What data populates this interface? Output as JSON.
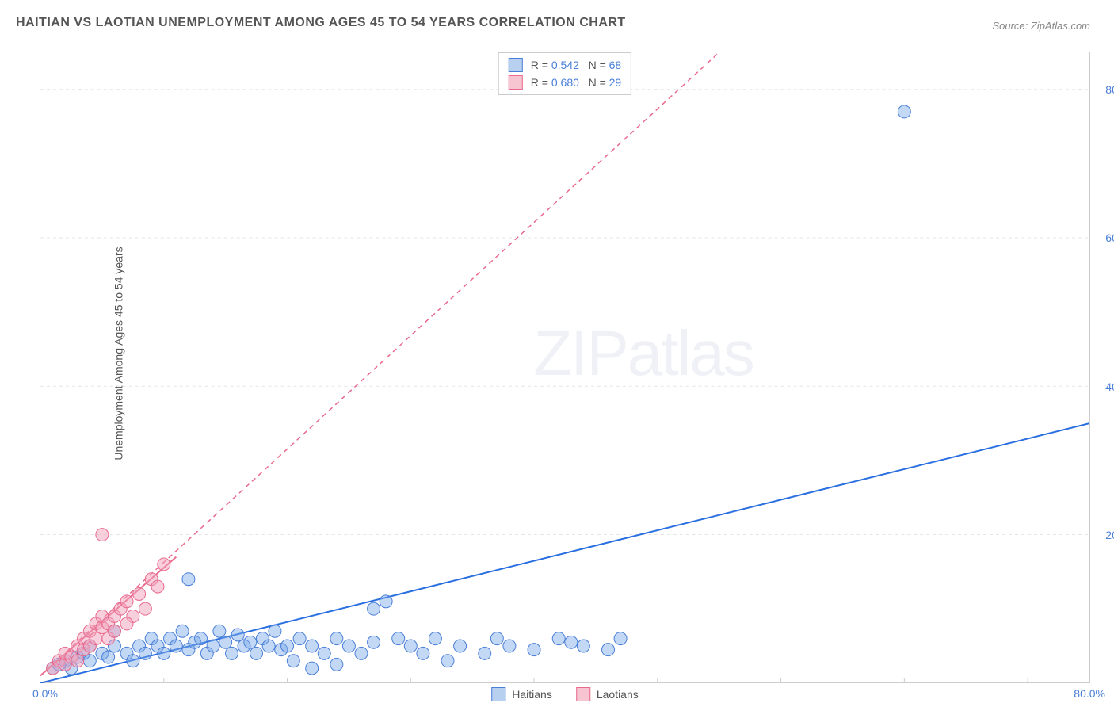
{
  "title": "HAITIAN VS LAOTIAN UNEMPLOYMENT AMONG AGES 45 TO 54 YEARS CORRELATION CHART",
  "source": "Source: ZipAtlas.com",
  "ylabel": "Unemployment Among Ages 45 to 54 years",
  "watermark": {
    "part1": "ZIP",
    "part2": "atlas"
  },
  "chart": {
    "type": "scatter",
    "xlim": [
      0,
      85
    ],
    "ylim": [
      0,
      85
    ],
    "x_origin_label": "0.0%",
    "x_max_label": "80.0%",
    "y_ticks": [
      20,
      40,
      60,
      80
    ],
    "y_tick_labels": [
      "20.0%",
      "40.0%",
      "60.0%",
      "80.0%"
    ],
    "grid_color": "#e5e5e5",
    "corr_legend": [
      {
        "swatch_fill": "#b8d0f0",
        "swatch_stroke": "#4a7fd8",
        "r": "0.542",
        "n": "68"
      },
      {
        "swatch_fill": "#f6c5d1",
        "swatch_stroke": "#e86a8d",
        "r": "0.680",
        "n": "29"
      }
    ],
    "series_legend": [
      {
        "label": "Haitians",
        "swatch_fill": "#b8d0f0",
        "swatch_stroke": "#4a7fd8"
      },
      {
        "label": "Laotians",
        "swatch_fill": "#f6c5d1",
        "swatch_stroke": "#e86a8d"
      }
    ],
    "series": [
      {
        "name": "Haitians",
        "marker_fill": "rgba(122,168,232,0.45)",
        "marker_stroke": "#4a7fd8",
        "marker_radius": 8,
        "trend": {
          "x1": 0,
          "y1": 0,
          "x2": 85,
          "y2": 35,
          "stroke": "#2a6fe0",
          "width": 2,
          "dash": ""
        },
        "points": [
          [
            1,
            2
          ],
          [
            1.5,
            2.5
          ],
          [
            2,
            3
          ],
          [
            2.5,
            2
          ],
          [
            3,
            3.5
          ],
          [
            3.5,
            4
          ],
          [
            4,
            3
          ],
          [
            4,
            5
          ],
          [
            5,
            4
          ],
          [
            5.5,
            3.5
          ],
          [
            6,
            5
          ],
          [
            6,
            7
          ],
          [
            7,
            4
          ],
          [
            7.5,
            3
          ],
          [
            8,
            5
          ],
          [
            8.5,
            4
          ],
          [
            9,
            6
          ],
          [
            9.5,
            5
          ],
          [
            10,
            4
          ],
          [
            10.5,
            6
          ],
          [
            11,
            5
          ],
          [
            11.5,
            7
          ],
          [
            12,
            4.5
          ],
          [
            12.5,
            5.5
          ],
          [
            13,
            6
          ],
          [
            13.5,
            4
          ],
          [
            14,
            5
          ],
          [
            14.5,
            7
          ],
          [
            15,
            5.5
          ],
          [
            15.5,
            4
          ],
          [
            16,
            6.5
          ],
          [
            16.5,
            5
          ],
          [
            17,
            5.5
          ],
          [
            17.5,
            4
          ],
          [
            18,
            6
          ],
          [
            18.5,
            5
          ],
          [
            19,
            7
          ],
          [
            19.5,
            4.5
          ],
          [
            20,
            5
          ],
          [
            20.5,
            3
          ],
          [
            21,
            6
          ],
          [
            22,
            5
          ],
          [
            22,
            2
          ],
          [
            23,
            4
          ],
          [
            24,
            6
          ],
          [
            24,
            2.5
          ],
          [
            25,
            5
          ],
          [
            26,
            4
          ],
          [
            27,
            10
          ],
          [
            27,
            5.5
          ],
          [
            28,
            11
          ],
          [
            29,
            6
          ],
          [
            30,
            5
          ],
          [
            31,
            4
          ],
          [
            32,
            6
          ],
          [
            33,
            3
          ],
          [
            34,
            5
          ],
          [
            36,
            4
          ],
          [
            37,
            6
          ],
          [
            38,
            5
          ],
          [
            40,
            4.5
          ],
          [
            42,
            6
          ],
          [
            43,
            5.5
          ],
          [
            44,
            5
          ],
          [
            46,
            4.5
          ],
          [
            47,
            6
          ],
          [
            12,
            14
          ],
          [
            70,
            77
          ]
        ]
      },
      {
        "name": "Laotians",
        "marker_fill": "rgba(242,160,185,0.5)",
        "marker_stroke": "#e86a8d",
        "marker_radius": 8,
        "trend": {
          "x1": 0,
          "y1": 1,
          "x2": 55,
          "y2": 85,
          "stroke": "#e86a8d",
          "width": 1.5,
          "dash": "6,5"
        },
        "trend_solid": {
          "x1": 0,
          "y1": 1,
          "x2": 11,
          "y2": 17,
          "stroke": "#e86a8d",
          "width": 2,
          "dash": ""
        },
        "points": [
          [
            1,
            2
          ],
          [
            1.5,
            3
          ],
          [
            2,
            2.5
          ],
          [
            2,
            4
          ],
          [
            2.5,
            3.5
          ],
          [
            3,
            5
          ],
          [
            3,
            3
          ],
          [
            3.5,
            6
          ],
          [
            3.5,
            4.5
          ],
          [
            4,
            7
          ],
          [
            4,
            5
          ],
          [
            4.5,
            8
          ],
          [
            4.5,
            6
          ],
          [
            5,
            7.5
          ],
          [
            5,
            9
          ],
          [
            5.5,
            6
          ],
          [
            5.5,
            8
          ],
          [
            6,
            9
          ],
          [
            6,
            7
          ],
          [
            6.5,
            10
          ],
          [
            7,
            11
          ],
          [
            7.5,
            9
          ],
          [
            8,
            12
          ],
          [
            8.5,
            10
          ],
          [
            9,
            14
          ],
          [
            9.5,
            13
          ],
          [
            10,
            16
          ],
          [
            5,
            20
          ],
          [
            7,
            8
          ]
        ]
      }
    ]
  }
}
